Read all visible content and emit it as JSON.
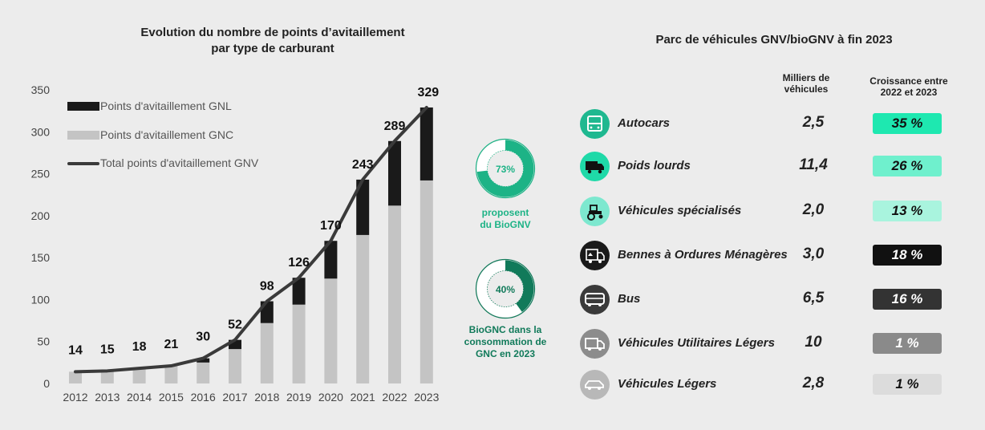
{
  "left": {
    "title_line1": "Evolution du nombre de points d’avitaillement",
    "title_line2": "par type de carburant",
    "legend": {
      "gnl": "Points d'avitaillement GNL",
      "gnc": "Points d'avitaillement GNC",
      "total": "Total points d'avitaillement GNV"
    }
  },
  "chart_data": {
    "type": "bar",
    "stacked": true,
    "title": "Evolution du nombre de points d’avitaillement par type de carburant",
    "categories": [
      "2012",
      "2013",
      "2014",
      "2015",
      "2016",
      "2017",
      "2018",
      "2019",
      "2020",
      "2021",
      "2022",
      "2023"
    ],
    "yticks": [
      0,
      50,
      100,
      150,
      200,
      250,
      300,
      350
    ],
    "ylim": [
      0,
      350
    ],
    "series": [
      {
        "name": "Points d'avitaillement GNC",
        "color": "#c4c4c4",
        "values": [
          14,
          15,
          18,
          21,
          25,
          41,
          72,
          94,
          125,
          177,
          212,
          242
        ]
      },
      {
        "name": "Points d'avitaillement GNL",
        "color": "#1a1a1a",
        "values": [
          0,
          0,
          0,
          0,
          5,
          11,
          26,
          32,
          45,
          66,
          77,
          87
        ]
      },
      {
        "name": "Total points d'avitaillement GNV",
        "type": "line",
        "color": "#3a3a3a",
        "values": [
          14,
          15,
          18,
          21,
          30,
          52,
          98,
          126,
          170,
          243,
          289,
          329
        ]
      }
    ],
    "total_labels": [
      "14",
      "15",
      "18",
      "21",
      "30",
      "52",
      "98",
      "126",
      "170",
      "243",
      "289",
      "329"
    ],
    "legend_position": "top-left"
  },
  "donuts": [
    {
      "percent": 73,
      "value_label": "73%",
      "caption1": "proposent",
      "caption2": "du BioGNV",
      "caption3": "",
      "color": "#1db386"
    },
    {
      "percent": 40,
      "value_label": "40%",
      "caption1": "BioGNC dans la",
      "caption2": "consommation de",
      "caption3": "GNC en 2023",
      "color": "#117a5a"
    }
  ],
  "right": {
    "title": "Parc de véhicules GNV/bioGNV à fin 2023",
    "col_units_1": "Milliers de",
    "col_units_2": "véhicules",
    "col_growth_1": "Croissance entre",
    "col_growth_2": "2022 et 2023",
    "rows": [
      {
        "name": "Autocars",
        "value": "2,5",
        "growth": "35 %",
        "icon": "bus-front-icon",
        "icon_bg": "#1fb890",
        "badge_bg": "#1ee8b0",
        "badge_fg": "#111"
      },
      {
        "name": "Poids lourds",
        "value": "11,4",
        "growth": "26 %",
        "icon": "truck-icon",
        "icon_bg": "#1fd9a8",
        "badge_bg": "#6ff0cd",
        "badge_fg": "#111"
      },
      {
        "name": "Véhicules spécialisés",
        "value": "2,0",
        "growth": "13 %",
        "icon": "tractor-icon",
        "icon_bg": "#7de8cf",
        "badge_bg": "#a9f4de",
        "badge_fg": "#111"
      },
      {
        "name": "Bennes à Ordures Ménagères",
        "value": "3,0",
        "growth": "18 %",
        "icon": "garbage-truck-icon",
        "icon_bg": "#1a1a1a",
        "badge_bg": "#111111",
        "badge_fg": "#ffffff"
      },
      {
        "name": "Bus",
        "value": "6,5",
        "growth": "16 %",
        "icon": "bus-icon",
        "icon_bg": "#3a3a3a",
        "badge_bg": "#333333",
        "badge_fg": "#ffffff"
      },
      {
        "name": "Véhicules Utilitaires Légers",
        "value": "10",
        "growth": "1 %",
        "icon": "van-icon",
        "icon_bg": "#8c8c8c",
        "badge_bg": "#8a8a8a",
        "badge_fg": "#ffffff"
      },
      {
        "name": "Véhicules Légers",
        "value": "2,8",
        "growth": "1 %",
        "icon": "car-icon",
        "icon_bg": "#b8b8b8",
        "badge_bg": "#dcdcdc",
        "badge_fg": "#111"
      }
    ]
  }
}
